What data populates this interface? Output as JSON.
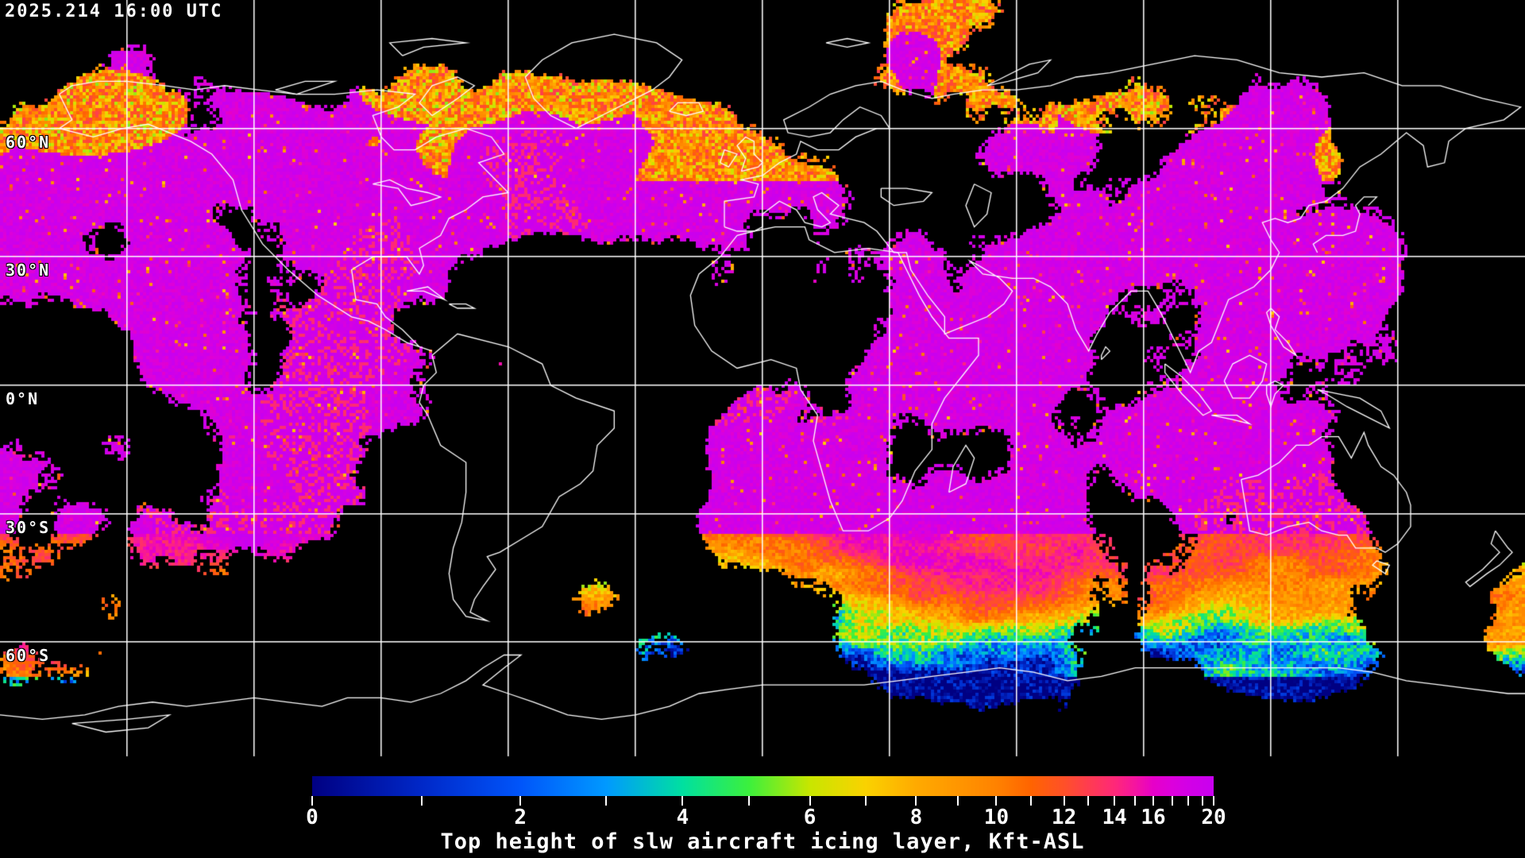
{
  "header": {
    "timestamp": "2025.214 16:00 UTC"
  },
  "map": {
    "latitude_labels": [
      {
        "label": "60°N",
        "lat": 60
      },
      {
        "label": "30°N",
        "lat": 30
      },
      {
        "label": "0°N",
        "lat": 0
      },
      {
        "label": "30°S",
        "lat": -30
      },
      {
        "label": "60°S",
        "lat": -60
      }
    ],
    "gridlines": {
      "lat_values": [
        60,
        30,
        0,
        -30,
        -60
      ],
      "lon_step_deg": 30,
      "color": "#FFFFFF"
    },
    "background_color": "#000000",
    "coastline_color": "#FFFFFF",
    "no_data_color": "#000000",
    "dominant_high_top_color": "#D200E6"
  },
  "colorbar": {
    "caption": "Top height of slw aircraft icing layer, Kft-ASL",
    "quantity": "Top height of slw aircraft icing layer",
    "unit": "Kft-ASL",
    "min": 0,
    "max": 20,
    "labeled_ticks": [
      0,
      2,
      4,
      6,
      8,
      10,
      12,
      14,
      16,
      20
    ],
    "stops": [
      {
        "v": 0,
        "f": 0.0,
        "c": "#000082"
      },
      {
        "v": 1,
        "f": 0.122,
        "c": "#0028C8"
      },
      {
        "v": 2,
        "f": 0.231,
        "c": "#0055FA"
      },
      {
        "v": 3,
        "f": 0.326,
        "c": "#0099FF"
      },
      {
        "v": 4,
        "f": 0.411,
        "c": "#00E0A0"
      },
      {
        "v": 5,
        "f": 0.485,
        "c": "#3CF03C"
      },
      {
        "v": 6,
        "f": 0.552,
        "c": "#C8E600"
      },
      {
        "v": 7,
        "f": 0.614,
        "c": "#FAD200"
      },
      {
        "v": 8,
        "f": 0.67,
        "c": "#FFAA00"
      },
      {
        "v": 9,
        "f": 0.716,
        "c": "#FF9600"
      },
      {
        "v": 10,
        "f": 0.759,
        "c": "#FF8200"
      },
      {
        "v": 11,
        "f": 0.797,
        "c": "#FF6400"
      },
      {
        "v": 12,
        "f": 0.834,
        "c": "#FF5028"
      },
      {
        "v": 13,
        "f": 0.861,
        "c": "#FF3C50"
      },
      {
        "v": 14,
        "f": 0.89,
        "c": "#FF2878"
      },
      {
        "v": 15,
        "f": 0.913,
        "c": "#F514A0"
      },
      {
        "v": 16,
        "f": 0.933,
        "c": "#E600C8"
      },
      {
        "v": 17,
        "f": 0.954,
        "c": "#DC00DC"
      },
      {
        "v": 18,
        "f": 0.972,
        "c": "#D200E6"
      },
      {
        "v": 19,
        "f": 0.988,
        "c": "#CD00EB"
      },
      {
        "v": 20,
        "f": 1.0,
        "c": "#C800F0"
      }
    ]
  }
}
